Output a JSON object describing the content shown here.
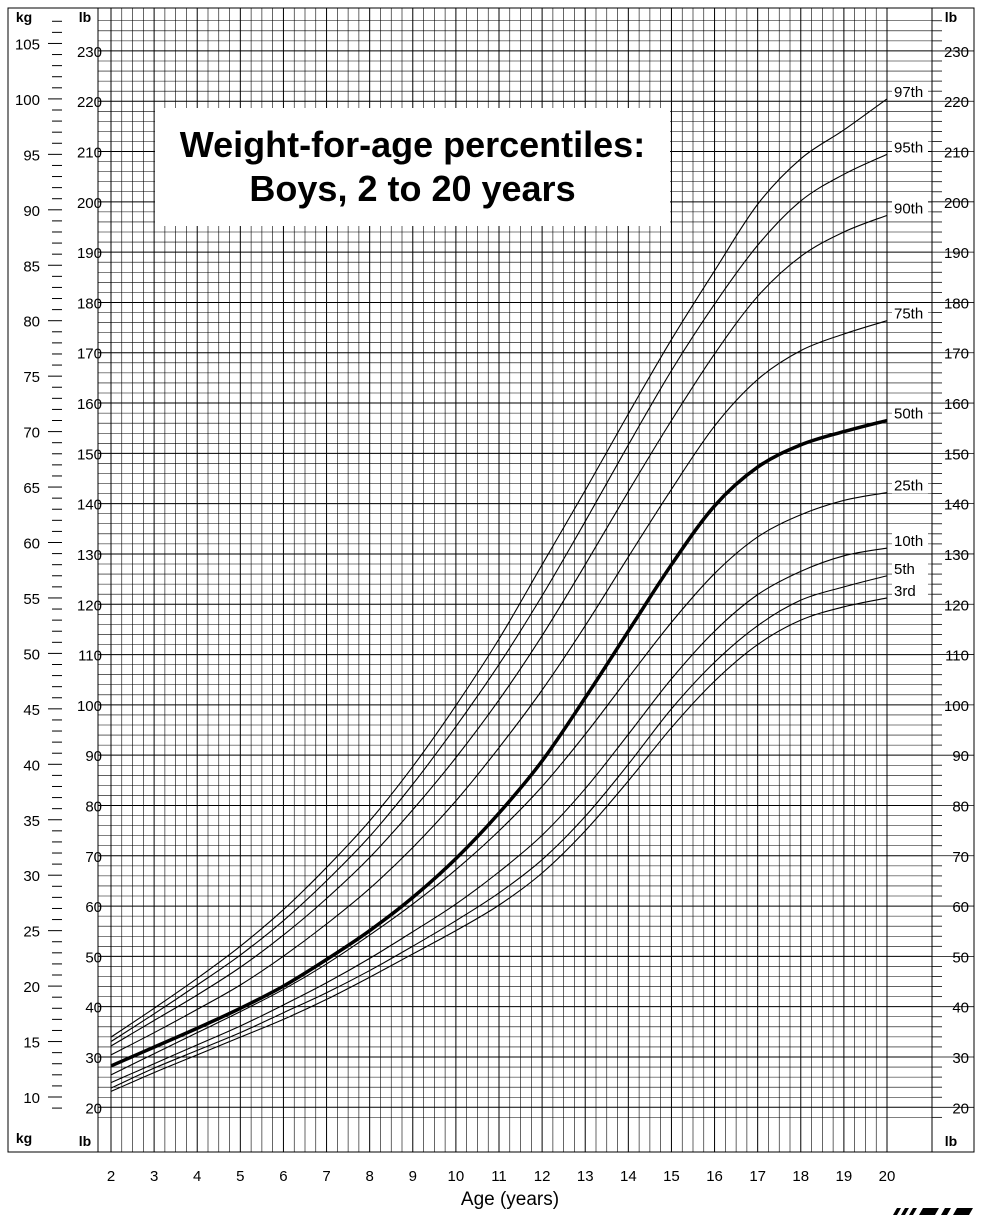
{
  "chart_data": {
    "type": "line",
    "title": "Weight-for-age percentiles:",
    "subtitle": "Boys, 2 to 20 years",
    "xlabel": "Age (years)",
    "x_ticks": [
      "2",
      "3",
      "4",
      "5",
      "6",
      "7",
      "8",
      "9",
      "10",
      "11",
      "12",
      "13",
      "14",
      "15",
      "16",
      "17",
      "18",
      "19",
      "20"
    ],
    "xlim": [
      2,
      20
    ],
    "kg_label": "kg",
    "lb_label": "lb",
    "kg_ticks": [
      "10",
      "15",
      "20",
      "25",
      "30",
      "35",
      "40",
      "45",
      "50",
      "55",
      "60",
      "65",
      "70",
      "75",
      "80",
      "85",
      "90",
      "95",
      "100",
      "105"
    ],
    "lb_ticks": [
      "20",
      "30",
      "40",
      "50",
      "60",
      "70",
      "80",
      "90",
      "100",
      "110",
      "120",
      "130",
      "140",
      "150",
      "160",
      "170",
      "180",
      "190",
      "200",
      "210",
      "220",
      "230"
    ],
    "ylim_kg": [
      8,
      108
    ],
    "grid": true,
    "x": [
      2,
      3,
      4,
      5,
      6,
      7,
      8,
      9,
      10,
      11,
      12,
      13,
      14,
      15,
      16,
      17,
      18,
      19,
      20
    ],
    "series": [
      {
        "name": "3rd",
        "bold": false,
        "values": [
          10.5,
          12.2,
          13.8,
          15.4,
          17.0,
          18.8,
          20.8,
          22.9,
          25.0,
          27.3,
          30.2,
          34.0,
          38.5,
          43.3,
          47.5,
          50.8,
          53.0,
          54.2,
          55.0
        ]
      },
      {
        "name": "5th",
        "bold": false,
        "values": [
          10.8,
          12.6,
          14.2,
          15.8,
          17.6,
          19.4,
          21.4,
          23.6,
          25.9,
          28.4,
          31.4,
          35.3,
          40.0,
          45.0,
          49.2,
          52.5,
          54.8,
          56.0,
          57.0
        ]
      },
      {
        "name": "10th",
        "bold": false,
        "values": [
          11.3,
          13.0,
          14.7,
          16.4,
          18.3,
          20.3,
          22.5,
          24.9,
          27.4,
          30.3,
          33.6,
          37.8,
          42.7,
          47.7,
          52.0,
          55.3,
          57.4,
          58.8,
          59.5
        ]
      },
      {
        "name": "25th",
        "bold": false,
        "values": [
          12.0,
          13.9,
          15.8,
          17.7,
          19.7,
          22.0,
          24.6,
          27.4,
          30.5,
          34.0,
          38.0,
          42.7,
          47.8,
          52.8,
          57.2,
          60.5,
          62.5,
          63.8,
          64.5
        ]
      },
      {
        "name": "50th",
        "bold": true,
        "values": [
          12.8,
          14.5,
          16.2,
          18.0,
          20.0,
          22.4,
          25.0,
          28.0,
          31.5,
          35.6,
          40.3,
          46.0,
          52.0,
          58.0,
          63.3,
          66.8,
          68.8,
          70.0,
          71.0
        ]
      },
      {
        "name": "75th",
        "bold": false,
        "values": [
          13.8,
          15.8,
          17.9,
          20.1,
          22.7,
          25.6,
          28.8,
          32.5,
          36.7,
          41.5,
          46.7,
          52.5,
          58.7,
          64.8,
          70.5,
          74.7,
          77.3,
          78.8,
          80.0
        ]
      },
      {
        "name": "90th",
        "bold": false,
        "values": [
          14.6,
          16.9,
          19.2,
          21.7,
          24.6,
          27.9,
          31.6,
          35.9,
          40.6,
          45.8,
          51.6,
          58.0,
          64.6,
          71.0,
          77.0,
          82.2,
          85.8,
          88.0,
          89.5
        ]
      },
      {
        "name": "95th",
        "bold": false,
        "values": [
          15.0,
          17.5,
          20.1,
          22.8,
          25.9,
          29.5,
          33.5,
          38.2,
          43.4,
          49.0,
          55.2,
          61.9,
          68.8,
          75.5,
          81.5,
          86.8,
          90.8,
          93.2,
          95.0
        ]
      },
      {
        "name": "97th",
        "bold": false,
        "values": [
          15.4,
          18.0,
          20.7,
          23.6,
          26.9,
          30.7,
          34.9,
          39.8,
          45.3,
          51.3,
          58.0,
          64.7,
          71.6,
          78.3,
          84.5,
          90.5,
          94.6,
          97.2,
          100.0
        ]
      }
    ]
  },
  "colors": {
    "line": "#000000",
    "grid": "#000000",
    "background": "#ffffff"
  },
  "footer": {
    "logo": "CDC logo mark"
  }
}
